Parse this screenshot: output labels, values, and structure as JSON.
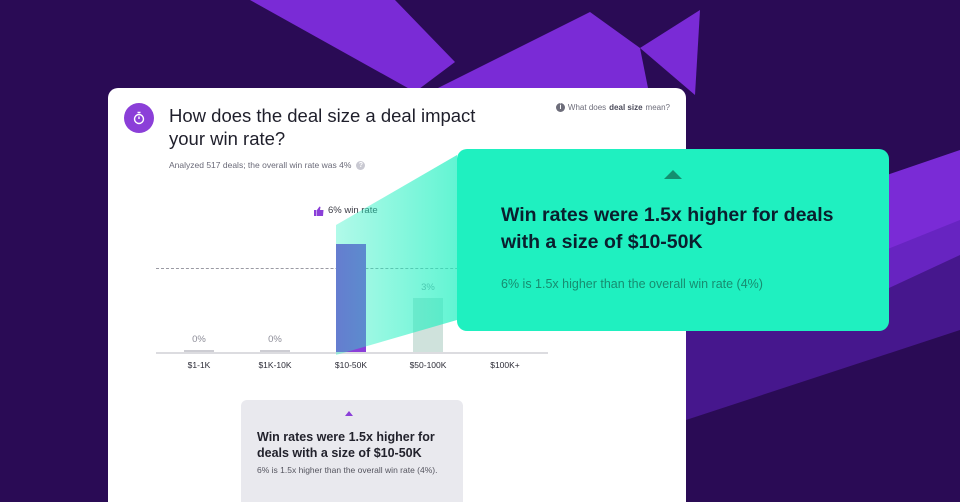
{
  "colors": {
    "background": "#2a0b55",
    "accent_purple": "#8b3fd8",
    "highlight_green": "#1ff0c0",
    "bar_neutral": "#cfe2dc",
    "bar_highlight": "#8b3fd8"
  },
  "card": {
    "icon": "timer-icon",
    "title": "How does the deal size a deal impact your win rate?",
    "help_prefix": "What does ",
    "help_term": "deal size",
    "help_suffix": " mean?",
    "analyzed": "Analyzed 517 deals; the overall win rate was 4%",
    "win_tag": "6% win rate"
  },
  "chart_data": {
    "type": "bar",
    "categories": [
      "$1-1K",
      "$1K-10K",
      "$10-50K",
      "$50-100K",
      "$100K+"
    ],
    "values": [
      0,
      0,
      6,
      3,
      null
    ],
    "value_labels": [
      "0%",
      "0%",
      "",
      "3%",
      ""
    ],
    "highlight_index": 2,
    "reference_line": 4,
    "ylim": [
      0,
      7
    ]
  },
  "mini_insight": {
    "headline": "Win rates were 1.5x higher for deals with a size of $10-50K",
    "detail": "6% is 1.5x higher than the overall win rate (4%)."
  },
  "callout": {
    "headline": "Win rates were 1.5x higher for deals with a size of $10-50K",
    "detail": "6% is 1.5x higher than the overall win rate (4%)"
  }
}
